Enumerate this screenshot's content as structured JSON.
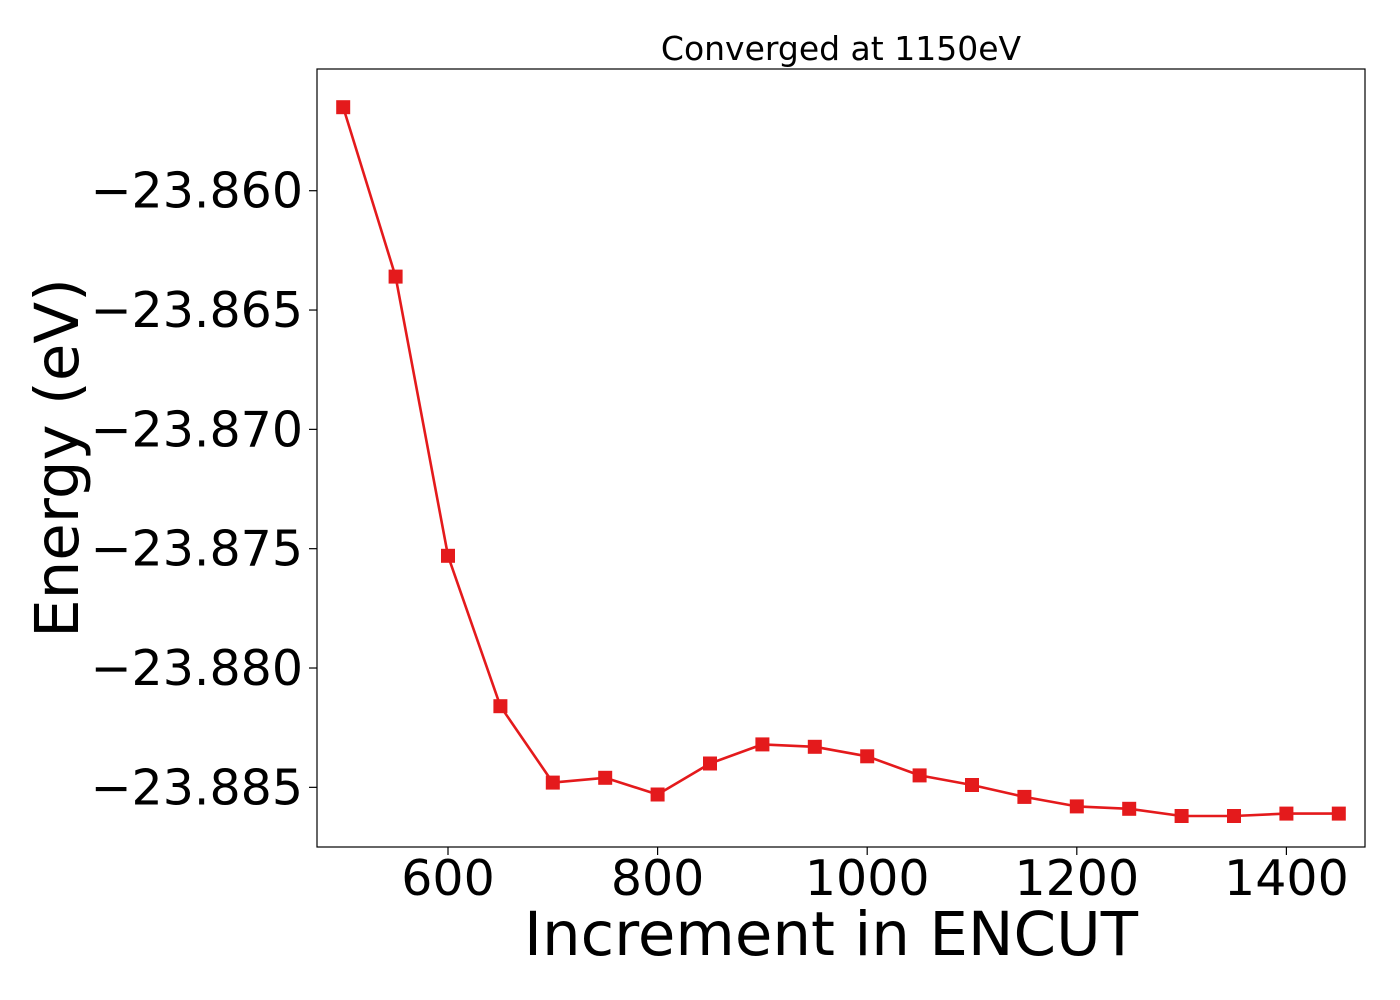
{
  "chart_data": {
    "type": "line",
    "title": "Converged at 1150eV",
    "xlabel": "Increment in ENCUT",
    "ylabel": "Energy (eV)",
    "xlim": [
      475,
      1475
    ],
    "ylim": [
      -23.8875,
      -23.8549
    ],
    "xticks": [
      600,
      800,
      1000,
      1200,
      1400
    ],
    "xtick_labels": [
      "600",
      "800",
      "1000",
      "1200",
      "1400"
    ],
    "yticks": [
      -23.86,
      -23.865,
      -23.87,
      -23.875,
      -23.88,
      -23.885
    ],
    "ytick_labels": [
      "−23.860",
      "−23.865",
      "−23.870",
      "−23.875",
      "−23.880",
      "−23.885"
    ],
    "grid": false,
    "series": [
      {
        "color": "#e41a1c",
        "marker": "square",
        "x": [
          500,
          550,
          600,
          650,
          700,
          750,
          800,
          850,
          900,
          950,
          1000,
          1050,
          1100,
          1150,
          1200,
          1250,
          1300,
          1350,
          1400,
          1450
        ],
        "y": [
          -23.8565,
          -23.8636,
          -23.8753,
          -23.8816,
          -23.8848,
          -23.8846,
          -23.8853,
          -23.884,
          -23.8832,
          -23.8833,
          -23.8837,
          -23.8845,
          -23.8849,
          -23.8854,
          -23.8858,
          -23.8859,
          -23.8862,
          -23.8862,
          -23.8861,
          -23.8861
        ]
      }
    ]
  }
}
